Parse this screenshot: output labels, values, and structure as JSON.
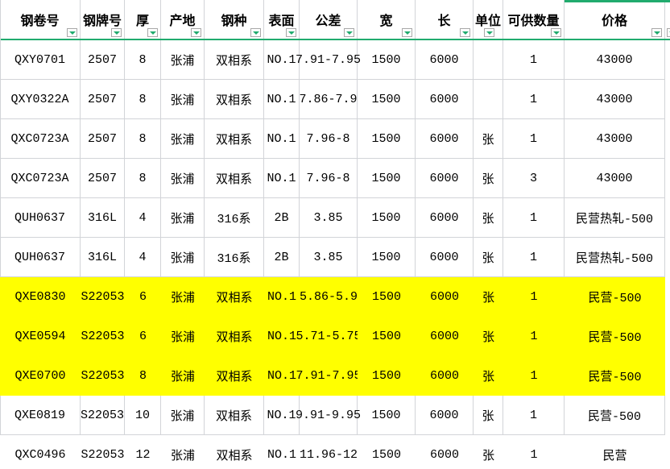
{
  "sheet": {
    "columns": [
      {
        "key": "coil_no",
        "label": "钢卷号"
      },
      {
        "key": "grade_no",
        "label": "钢牌号"
      },
      {
        "key": "thickness",
        "label": "厚"
      },
      {
        "key": "origin",
        "label": "产地"
      },
      {
        "key": "steel_type",
        "label": "钢种"
      },
      {
        "key": "surface",
        "label": "表面"
      },
      {
        "key": "tolerance",
        "label": "公差"
      },
      {
        "key": "width",
        "label": "宽"
      },
      {
        "key": "length",
        "label": "长"
      },
      {
        "key": "unit",
        "label": "单位"
      },
      {
        "key": "qty",
        "label": "可供数量"
      },
      {
        "key": "price",
        "label": "价格"
      }
    ],
    "rows": [
      {
        "highlight": false,
        "cells": [
          "QXY0701",
          "2507",
          "8",
          "张浦",
          "双相系",
          "NO.1",
          "7.91-7.95",
          "1500",
          "6000",
          "",
          "1",
          "43000"
        ]
      },
      {
        "highlight": false,
        "cells": [
          "QXY0322A",
          "2507",
          "8",
          "张浦",
          "双相系",
          "NO.1",
          "7.86-7.9",
          "1500",
          "6000",
          "",
          "1",
          "43000"
        ]
      },
      {
        "highlight": false,
        "cells": [
          "QXC0723A",
          "2507",
          "8",
          "张浦",
          "双相系",
          "NO.1",
          "7.96-8",
          "1500",
          "6000",
          "张",
          "1",
          "43000"
        ]
      },
      {
        "highlight": false,
        "cells": [
          "QXC0723A",
          "2507",
          "8",
          "张浦",
          "双相系",
          "NO.1",
          "7.96-8",
          "1500",
          "6000",
          "张",
          "3",
          "43000"
        ]
      },
      {
        "highlight": false,
        "cells": [
          "QUH0637",
          "316L",
          "4",
          "张浦",
          "316系",
          "2B",
          "3.85",
          "1500",
          "6000",
          "张",
          "1",
          "民营热轧-500"
        ]
      },
      {
        "highlight": false,
        "cells": [
          "QUH0637",
          "316L",
          "4",
          "张浦",
          "316系",
          "2B",
          "3.85",
          "1500",
          "6000",
          "张",
          "1",
          "民营热轧-500"
        ]
      },
      {
        "highlight": true,
        "cells": [
          "QXE0830",
          "S22053",
          "6",
          "张浦",
          "双相系",
          "NO.1",
          "5.86-5.9",
          "1500",
          "6000",
          "张",
          "1",
          "民营-500"
        ]
      },
      {
        "highlight": true,
        "cells": [
          "QXE0594",
          "S22053",
          "6",
          "张浦",
          "双相系",
          "NO.1",
          "5.71-5.75",
          "1500",
          "6000",
          "张",
          "1",
          "民营-500"
        ]
      },
      {
        "highlight": true,
        "cells": [
          "QXE0700",
          "S22053",
          "8",
          "张浦",
          "双相系",
          "NO.1",
          "7.91-7.95",
          "1500",
          "6000",
          "张",
          "1",
          "民营-500"
        ]
      },
      {
        "highlight": false,
        "cells": [
          "QXE0819",
          "S22053",
          "10",
          "张浦",
          "双相系",
          "NO.1",
          "9.91-9.95",
          "1500",
          "6000",
          "张",
          "1",
          "民营-500"
        ]
      },
      {
        "highlight": false,
        "cells": [
          "QXC0496",
          "S22053",
          "12",
          "张浦",
          "双相系",
          "NO.1",
          "11.96-12",
          "1500",
          "6000",
          "张",
          "1",
          "民营"
        ]
      }
    ]
  },
  "colors": {
    "accent_green": "#21ab6e",
    "highlight_yellow": "#ffff00",
    "gridline": "#d2d4d8",
    "text": "#000000"
  },
  "icons": {
    "filter_dropdown": "chevron-down-triangle"
  }
}
